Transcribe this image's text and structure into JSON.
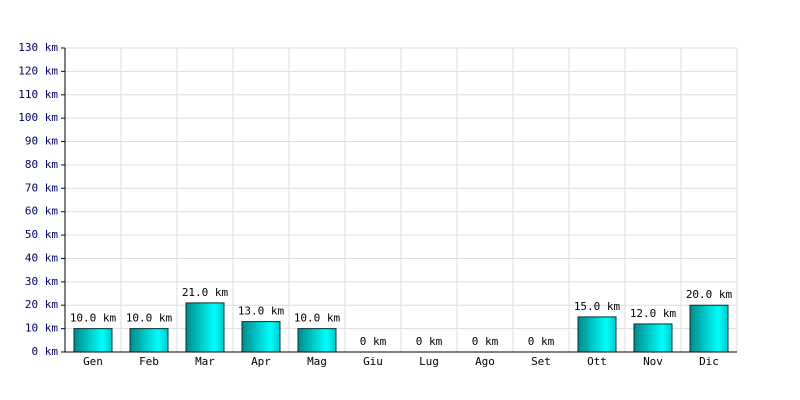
{
  "chart_data": {
    "type": "bar",
    "categories": [
      "Gen",
      "Feb",
      "Mar",
      "Apr",
      "Mag",
      "Giu",
      "Lug",
      "Ago",
      "Set",
      "Ott",
      "Nov",
      "Dic"
    ],
    "values": [
      10,
      10,
      21,
      13,
      10,
      0,
      0,
      0,
      0,
      15,
      12,
      20
    ],
    "value_labels": [
      "10.0 km",
      "10.0 km",
      "21.0 km",
      "13.0 km",
      "10.0 km",
      "0 km",
      "0 km",
      "0 km",
      "0 km",
      "15.0 km",
      "12.0 km",
      "20.0 km"
    ],
    "color": "#00ffff",
    "ylim": [
      0,
      130
    ],
    "yticks": [
      {
        "value": 0,
        "label": "0 km"
      },
      {
        "value": 10,
        "label": "10 km"
      },
      {
        "value": 20,
        "label": "20 km"
      },
      {
        "value": 30,
        "label": "30 km"
      },
      {
        "value": 40,
        "label": "40 km"
      },
      {
        "value": 50,
        "label": "50 km"
      },
      {
        "value": 60,
        "label": "60 km"
      },
      {
        "value": 70,
        "label": "70 km"
      },
      {
        "value": 80,
        "label": "80 km"
      },
      {
        "value": 90,
        "label": "90 km"
      },
      {
        "value": 100,
        "label": "100 km"
      },
      {
        "value": 110,
        "label": "110 km"
      },
      {
        "value": 120,
        "label": "120 km"
      },
      {
        "value": 130,
        "label": "130 km"
      }
    ],
    "grid": true
  }
}
